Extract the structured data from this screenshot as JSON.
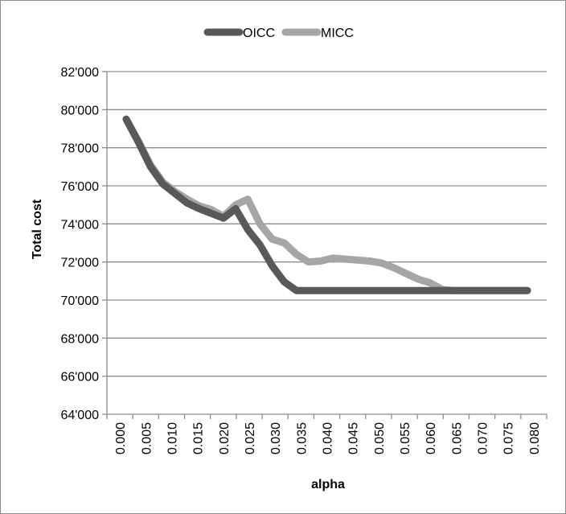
{
  "chart_data": {
    "type": "line",
    "xlabel": "alpha",
    "ylabel": "Total cost",
    "ylim": [
      64000,
      82000
    ],
    "ytick_values": [
      64000,
      66000,
      68000,
      70000,
      72000,
      74000,
      76000,
      78000,
      80000,
      82000
    ],
    "ytick_labels": [
      "64'000",
      "66'000",
      "68'000",
      "70'000",
      "72'000",
      "74'000",
      "76'000",
      "78'000",
      "80'000",
      "82'000"
    ],
    "x": [
      0.0,
      0.0025,
      0.005,
      0.0075,
      0.01,
      0.0125,
      0.015,
      0.0175,
      0.02,
      0.0225,
      0.025,
      0.0275,
      0.03,
      0.0325,
      0.035,
      0.0375,
      0.04,
      0.0425,
      0.045,
      0.0475,
      0.05,
      0.0525,
      0.055,
      0.0575,
      0.06,
      0.0625,
      0.065,
      0.0675,
      0.07,
      0.0725,
      0.075,
      0.0775,
      0.08,
      0.0825
    ],
    "x_tick_labels": [
      "0.000",
      "0.005",
      "0.010",
      "0.015",
      "0.020",
      "0.025",
      "0.030",
      "0.035",
      "0.040",
      "0.045",
      "0.050",
      "0.055",
      "0.060",
      "0.065",
      "0.070",
      "0.075",
      "0.080"
    ],
    "series": [
      {
        "name": "OICC",
        "color": "#595959",
        "values": [
          79500,
          78300,
          77000,
          76100,
          75600,
          75100,
          74800,
          74550,
          74300,
          74800,
          73700,
          72900,
          71800,
          70950,
          70500,
          70500,
          70500,
          70500,
          70500,
          70500,
          70500,
          70500,
          70500,
          70500,
          70500,
          70500,
          70500,
          70500,
          70500,
          70500,
          70500,
          70500,
          70500,
          70500
        ]
      },
      {
        "name": "MICC",
        "color": "#a6a6a6",
        "values": [
          79500,
          78350,
          77100,
          76200,
          75700,
          75300,
          74950,
          74750,
          74400,
          75000,
          75300,
          74000,
          73200,
          73000,
          72400,
          72000,
          72050,
          72200,
          72150,
          72100,
          72050,
          71950,
          71700,
          71400,
          71100,
          70900,
          70550,
          70500,
          70500,
          70500,
          70500,
          70500,
          70500,
          70500
        ]
      }
    ],
    "legend_position": "top",
    "grid": "horizontal"
  }
}
